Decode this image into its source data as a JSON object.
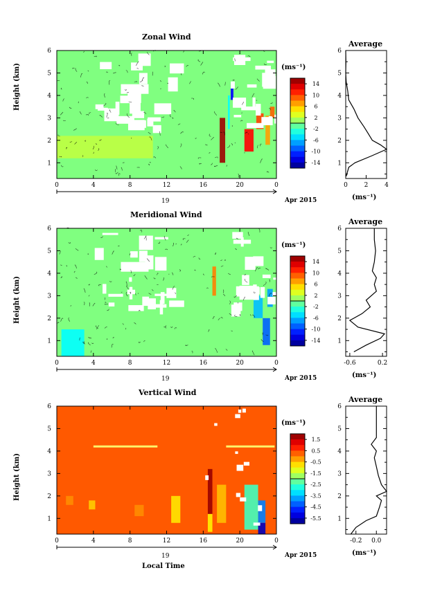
{
  "time_label": "Local Time",
  "date_label": "Apr 2015",
  "day_label": "19",
  "panels": [
    {
      "title": "Zonal Wind",
      "avg_title": "Average",
      "ylabel": "Height (km)",
      "unit_label": "(ms⁻¹)",
      "x_ticks": [
        "0",
        "4",
        "8",
        "12",
        "16",
        "20",
        "0"
      ],
      "y_ticks": [
        "1",
        "2",
        "3",
        "4",
        "5",
        "6"
      ],
      "colorbar_ticks": [
        "14",
        "10",
        "6",
        "2",
        "-2",
        "-6",
        "-10",
        "-14"
      ],
      "avg_x_ticks": [
        "0",
        "2",
        "4"
      ],
      "avg_xlabel": "(ms⁻¹)"
    },
    {
      "title": "Meridional Wind",
      "avg_title": "Average",
      "ylabel": "Height (km)",
      "unit_label": "(ms⁻¹)",
      "x_ticks": [
        "0",
        "4",
        "8",
        "12",
        "16",
        "20",
        "0"
      ],
      "y_ticks": [
        "1",
        "2",
        "3",
        "4",
        "5",
        "6"
      ],
      "colorbar_ticks": [
        "14",
        "10",
        "6",
        "2",
        "-2",
        "-6",
        "-10",
        "-14"
      ],
      "avg_x_ticks": [
        "-0.6",
        "0.2"
      ],
      "avg_xlabel": "(ms⁻¹)"
    },
    {
      "title": "Vertical Wind",
      "avg_title": "Average",
      "ylabel": "Height (km)",
      "unit_label": "(ms⁻¹)",
      "x_ticks": [
        "0",
        "4",
        "8",
        "12",
        "16",
        "20",
        "0"
      ],
      "y_ticks": [
        "1",
        "2",
        "3",
        "4",
        "5",
        "6"
      ],
      "colorbar_ticks": [
        "1.5",
        "0.5",
        "-0.5",
        "-1.5",
        "-2.5",
        "-3.5",
        "-4.5",
        "-5.5"
      ],
      "avg_x_ticks": [
        "-0.2",
        "0.0"
      ],
      "avg_xlabel": "(ms⁻¹)"
    }
  ],
  "chart_data": [
    {
      "type": "heatmap",
      "title": "Zonal Wind",
      "xlabel": "Local Time",
      "ylabel": "Height (km)",
      "x_range": [
        0,
        24
      ],
      "y_range": [
        0.3,
        6
      ],
      "colorbar": {
        "min": -16,
        "max": 16,
        "unit": "ms-1",
        "ticks": [
          14,
          10,
          6,
          2,
          -2,
          -6,
          -10,
          -14
        ]
      },
      "background_value": 0,
      "patches": [
        {
          "t": [
            0,
            10.5
          ],
          "h": [
            1.2,
            2.2
          ],
          "v": 2
        },
        {
          "t": [
            17.8,
            18.4
          ],
          "h": [
            1.0,
            3.0
          ],
          "v": 15
        },
        {
          "t": [
            18.7,
            18.9
          ],
          "h": [
            2.5,
            4.0
          ],
          "v": -4
        },
        {
          "t": [
            19.0,
            19.3
          ],
          "h": [
            3.8,
            4.5
          ],
          "v": -12
        },
        {
          "t": [
            20.5,
            21.5
          ],
          "h": [
            1.5,
            2.5
          ],
          "v": 12
        },
        {
          "t": [
            21.8,
            22.6
          ],
          "h": [
            2.5,
            3.2
          ],
          "v": 10
        },
        {
          "t": [
            22.8,
            23.3
          ],
          "h": [
            1.8,
            3.1
          ],
          "v": 7
        },
        {
          "t": [
            23.3,
            23.8
          ],
          "h": [
            3.0,
            3.5
          ],
          "v": 9
        }
      ],
      "average_profile": {
        "xlabel": "(ms-1)",
        "x_range": [
          0,
          4
        ],
        "points": [
          [
            0.05,
            0.4
          ],
          [
            0.3,
            0.8
          ],
          [
            0.9,
            1.0
          ],
          [
            2.5,
            1.3
          ],
          [
            4.0,
            1.6
          ],
          [
            3.4,
            1.8
          ],
          [
            2.6,
            2.0
          ],
          [
            2.2,
            2.3
          ],
          [
            1.8,
            2.6
          ],
          [
            1.2,
            3.0
          ],
          [
            0.8,
            3.4
          ],
          [
            0.3,
            3.8
          ],
          [
            0.2,
            4.2
          ],
          [
            0.05,
            4.6
          ],
          [
            0.0,
            5.0
          ],
          [
            0.02,
            5.5
          ],
          [
            0.0,
            6.0
          ]
        ]
      }
    },
    {
      "type": "heatmap",
      "title": "Meridional Wind",
      "xlabel": "Local Time",
      "ylabel": "Height (km)",
      "x_range": [
        0,
        24
      ],
      "y_range": [
        0.3,
        6
      ],
      "colorbar": {
        "min": -16,
        "max": 16,
        "unit": "ms-1",
        "ticks": [
          14,
          10,
          6,
          2,
          -2,
          -6,
          -10,
          -14
        ]
      },
      "background_value": 0,
      "patches": [
        {
          "t": [
            0.5,
            3.0
          ],
          "h": [
            0.3,
            1.5
          ],
          "v": -4
        },
        {
          "t": [
            17.0,
            17.4
          ],
          "h": [
            3.0,
            4.3
          ],
          "v": 8
        },
        {
          "t": [
            21.5,
            22.5
          ],
          "h": [
            2.0,
            3.0
          ],
          "v": -6
        },
        {
          "t": [
            22.5,
            23.3
          ],
          "h": [
            0.8,
            2.0
          ],
          "v": -9
        },
        {
          "t": [
            23.0,
            23.6
          ],
          "h": [
            2.5,
            3.3
          ],
          "v": -7
        }
      ],
      "average_profile": {
        "xlabel": "(ms-1)",
        "x_range": [
          -0.7,
          0.3
        ],
        "points": [
          [
            -0.5,
            0.5
          ],
          [
            -0.2,
            0.8
          ],
          [
            0.15,
            1.1
          ],
          [
            0.25,
            1.3
          ],
          [
            -0.4,
            1.6
          ],
          [
            -0.6,
            1.9
          ],
          [
            -0.3,
            2.2
          ],
          [
            -0.1,
            2.5
          ],
          [
            -0.2,
            2.8
          ],
          [
            0.05,
            3.2
          ],
          [
            0.0,
            3.5
          ],
          [
            0.05,
            3.8
          ],
          [
            -0.05,
            4.1
          ],
          [
            0.0,
            4.5
          ],
          [
            0.03,
            5.0
          ],
          [
            0.0,
            5.5
          ],
          [
            0.0,
            6.0
          ]
        ]
      }
    },
    {
      "type": "heatmap",
      "title": "Vertical Wind",
      "xlabel": "Local Time",
      "ylabel": "Height (km)",
      "x_range": [
        0,
        24
      ],
      "y_range": [
        0.3,
        6
      ],
      "colorbar": {
        "min": -6,
        "max": 2,
        "unit": "ms-1",
        "ticks": [
          1.5,
          0.5,
          -0.5,
          -1.5,
          -2.5,
          -3.5,
          -4.5,
          -5.5
        ]
      },
      "background_value": 0.3,
      "patches": [
        {
          "t": [
            1.0,
            1.8
          ],
          "h": [
            1.6,
            2.0
          ],
          "v": -0.1
        },
        {
          "t": [
            8.5,
            9.5
          ],
          "h": [
            1.1,
            1.6
          ],
          "v": -0.1
        },
        {
          "t": [
            3.5,
            4.2
          ],
          "h": [
            1.4,
            1.8
          ],
          "v": -0.6
        },
        {
          "t": [
            12.5,
            13.5
          ],
          "h": [
            0.8,
            2.0
          ],
          "v": -0.8
        },
        {
          "t": [
            16.5,
            17.0
          ],
          "h": [
            0.4,
            1.2
          ],
          "v": -0.9
        },
        {
          "t": [
            16.5,
            17.0
          ],
          "h": [
            1.2,
            3.2
          ],
          "v": 1.8
        },
        {
          "t": [
            17.5,
            18.5
          ],
          "h": [
            0.8,
            2.5
          ],
          "v": -0.5
        },
        {
          "t": [
            20.5,
            22.0
          ],
          "h": [
            0.5,
            2.5
          ],
          "v": -2.5
        },
        {
          "t": [
            22.0,
            22.8
          ],
          "h": [
            0.8,
            1.8
          ],
          "v": -4.0
        },
        {
          "t": [
            22.0,
            22.8
          ],
          "h": [
            0.3,
            0.8
          ],
          "v": -5.5
        }
      ],
      "average_profile": {
        "xlabel": "(ms-1)",
        "x_range": [
          -0.3,
          0.1
        ],
        "points": [
          [
            -0.25,
            0.3
          ],
          [
            -0.2,
            0.6
          ],
          [
            -0.1,
            0.9
          ],
          [
            0.0,
            1.1
          ],
          [
            0.03,
            1.5
          ],
          [
            0.05,
            1.8
          ],
          [
            0.0,
            2.0
          ],
          [
            0.1,
            2.2
          ],
          [
            0.05,
            2.5
          ],
          [
            0.02,
            2.9
          ],
          [
            0.0,
            3.3
          ],
          [
            -0.02,
            3.7
          ],
          [
            0.0,
            4.0
          ],
          [
            -0.05,
            4.3
          ],
          [
            0.0,
            4.6
          ],
          [
            0.0,
            5.2
          ],
          [
            0.0,
            6.0
          ]
        ]
      }
    }
  ]
}
